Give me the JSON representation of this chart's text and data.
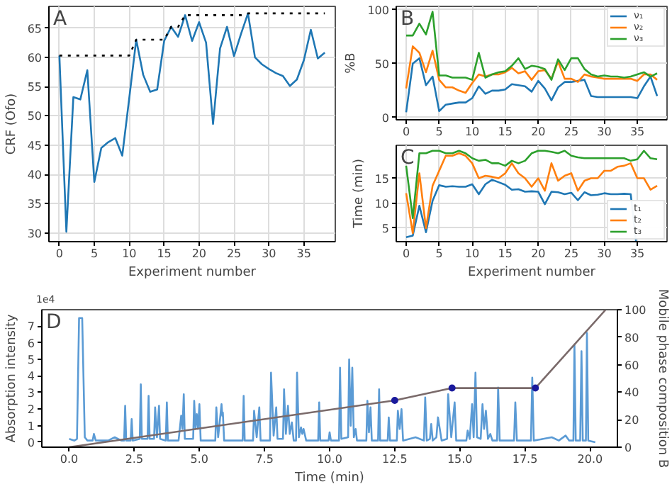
{
  "chart_data": [
    {
      "type": "line",
      "title": "A",
      "xlabel": "Experiment number",
      "ylabel": "CRF (Ofo)",
      "xlim": [
        -1.5,
        39.5
      ],
      "ylim": [
        28.5,
        68.7
      ],
      "xticks": [
        0,
        5,
        10,
        15,
        20,
        25,
        30,
        35
      ],
      "yticks": [
        30,
        35,
        40,
        45,
        50,
        55,
        60,
        65
      ],
      "grid": true,
      "legend": false,
      "x": [
        0,
        1,
        2,
        3,
        4,
        5,
        6,
        7,
        8,
        9,
        10,
        11,
        12,
        13,
        14,
        15,
        16,
        17,
        18,
        19,
        20,
        21,
        22,
        23,
        24,
        25,
        26,
        27,
        28,
        29,
        30,
        31,
        32,
        33,
        34,
        35,
        36,
        37,
        38
      ],
      "series": [
        {
          "color": "#1f77b4",
          "line_style": "solid",
          "values": [
            60.3,
            30.2,
            53.2,
            52.8,
            57.8,
            38.7,
            44.5,
            45.5,
            46.2,
            43.2,
            53,
            63,
            57,
            54.1,
            54.5,
            62.8,
            65.2,
            63.5,
            67.2,
            62.8,
            66,
            62.5,
            48.6,
            61.5,
            65.2,
            60.2,
            64,
            67.5,
            60,
            58.8,
            58,
            57.3,
            56.8,
            55.1,
            56.2,
            59.5,
            64.7,
            59.8,
            60.8
          ]
        },
        {
          "color": "#000000",
          "line_style": "dotted",
          "values": [
            60.3,
            60.3,
            60.3,
            60.3,
            60.3,
            60.3,
            60.3,
            60.3,
            60.3,
            60.3,
            60.3,
            63,
            63,
            63,
            63,
            63,
            65.2,
            65.2,
            67.2,
            67.2,
            67.2,
            67.2,
            67.2,
            67.2,
            67.2,
            67.2,
            67.2,
            67.5,
            67.5,
            67.5,
            67.5,
            67.5,
            67.5,
            67.5,
            67.5,
            67.5,
            67.5,
            67.5,
            67.5
          ]
        }
      ]
    },
    {
      "type": "line",
      "title": "B",
      "ylabel": "%B",
      "xlim": [
        -1.5,
        39.5
      ],
      "ylim": [
        -2,
        103
      ],
      "xticks": [
        0,
        5,
        10,
        15,
        20,
        25,
        30,
        35
      ],
      "yticks": [
        0,
        50,
        100
      ],
      "grid": true,
      "legend": "top right",
      "x": [
        0,
        1,
        2,
        3,
        4,
        5,
        6,
        7,
        8,
        9,
        10,
        11,
        12,
        13,
        14,
        15,
        16,
        17,
        18,
        19,
        20,
        21,
        22,
        23,
        24,
        25,
        26,
        27,
        28,
        29,
        30,
        31,
        32,
        33,
        34,
        35,
        36,
        37,
        38
      ],
      "series": [
        {
          "name": "ν₁",
          "color": "#1f77b4",
          "values": [
            5,
            50,
            55,
            30,
            38,
            6,
            12,
            13,
            14,
            14,
            18,
            29,
            22,
            25,
            25,
            26,
            31,
            30,
            29,
            24,
            34,
            27,
            16,
            28,
            33,
            33,
            34,
            35,
            20,
            19,
            19,
            19,
            19,
            19,
            19,
            18,
            29,
            38,
            20
          ]
        },
        {
          "name": "ν₂",
          "color": "#ff7f0e",
          "values": [
            27,
            66,
            60,
            42,
            62,
            35,
            28,
            28,
            25,
            23,
            32,
            40,
            38,
            40,
            40,
            42,
            46,
            41,
            43,
            35,
            43,
            44,
            36,
            52,
            36,
            36,
            33,
            40,
            38,
            37,
            36,
            36,
            36,
            36,
            36,
            34,
            40,
            40,
            35
          ]
        },
        {
          "name": "ν₃",
          "color": "#2ca02c",
          "values": [
            76,
            76,
            87,
            77,
            98,
            39,
            39,
            37,
            37,
            37,
            35,
            60,
            37,
            40,
            42,
            43,
            48,
            55,
            45,
            48,
            47,
            45,
            35,
            54,
            44,
            55,
            55,
            45,
            40,
            38,
            39,
            38,
            38,
            37,
            38,
            40,
            42,
            38,
            41
          ]
        }
      ]
    },
    {
      "type": "line",
      "title": "C",
      "xlabel": "Experiment number",
      "ylabel": "Time (min)",
      "xlim": [
        -1.5,
        39.5
      ],
      "ylim": [
        2.3,
        21.6
      ],
      "xticks": [
        0,
        5,
        10,
        15,
        20,
        25,
        30,
        35
      ],
      "yticks": [
        5,
        10,
        15
      ],
      "grid": true,
      "legend": "bottom right",
      "x": [
        0,
        1,
        2,
        3,
        4,
        5,
        6,
        7,
        8,
        9,
        10,
        11,
        12,
        13,
        14,
        15,
        16,
        17,
        18,
        19,
        20,
        21,
        22,
        23,
        24,
        25,
        26,
        27,
        28,
        29,
        30,
        31,
        32,
        33,
        34,
        35,
        36,
        37,
        38
      ],
      "series": [
        {
          "name": "t₁",
          "color": "#1f77b4",
          "values": [
            3.2,
            3.5,
            9.5,
            4.2,
            10.5,
            13.6,
            13.3,
            13.4,
            13.3,
            13.3,
            13.8,
            11.8,
            13.8,
            14.7,
            14.2,
            13.7,
            12.7,
            12.8,
            12.3,
            12.4,
            12.3,
            9.8,
            12.3,
            12.2,
            11.8,
            12.1,
            10.6,
            12.2,
            11.6,
            11.7,
            12,
            11.8,
            11.8,
            11.9,
            11.8,
            null,
            null,
            null,
            null
          ]
        },
        {
          "name": "t₂",
          "color": "#ff7f0e",
          "values": [
            12,
            4,
            16,
            5,
            13.5,
            16.5,
            19.5,
            19.5,
            20,
            19.5,
            18,
            15,
            15.5,
            15.3,
            15,
            16,
            18,
            16,
            15,
            13.3,
            15,
            12.5,
            18,
            14.5,
            15.5,
            16,
            12.5,
            14.5,
            15,
            15,
            16.5,
            16.5,
            17.3,
            17.5,
            18,
            15,
            15,
            12.7,
            13.5
          ]
        },
        {
          "name": "t₃",
          "color": "#2ca02c",
          "values": [
            17.5,
            7,
            20,
            20,
            20.5,
            20.5,
            20,
            20,
            20.5,
            20,
            19,
            18.5,
            18.7,
            18,
            18,
            17.5,
            18.5,
            18,
            18.5,
            20,
            20.5,
            20.5,
            20.3,
            20,
            20.5,
            19.5,
            19.2,
            19,
            19,
            19,
            19,
            19,
            19,
            19,
            18.5,
            18.8,
            20.5,
            19,
            18.8
          ]
        }
      ]
    },
    {
      "type": "line",
      "title": "D",
      "xlabel": "Time (min)",
      "ylabel": "Absorption intensity",
      "y2label": "Mobile phase composition B",
      "annotations": [
        "1e4"
      ],
      "xlim": [
        -1.05,
        21.05
      ],
      "ylim": [
        -0.3,
        8.0
      ],
      "y2lim": [
        0,
        100
      ],
      "xticks": [
        {
          "value": 0,
          "label": "0.0"
        },
        2.5,
        {
          "value": 5,
          "label": "5.0"
        },
        7.5,
        {
          "value": 10,
          "label": "10.0"
        },
        12.5,
        {
          "value": 15,
          "label": "15.0"
        },
        17.5,
        {
          "value": 20,
          "label": "20.0"
        }
      ],
      "yticks": [
        0,
        1,
        2,
        3,
        4,
        5,
        6,
        7
      ],
      "y2ticks": [
        0,
        20,
        40,
        60,
        80,
        100
      ],
      "grid": false,
      "legend": false,
      "series": [
        {
          "color": "#5b9bd5",
          "x": [
            0.0,
            0.2,
            0.3,
            0.38,
            0.5,
            0.6,
            0.7,
            0.9,
            0.95,
            1.02,
            1.5,
            1.75,
            2.0,
            2.11,
            2.15,
            2.19,
            2.36,
            2.4,
            2.44,
            2.71,
            2.75,
            2.79,
            3.01,
            3.05,
            3.09,
            3.26,
            3.3,
            3.37,
            3.45,
            3.49,
            3.71,
            3.75,
            3.79,
            4.2,
            4.3,
            4.35,
            4.4,
            4.44,
            4.76,
            4.8,
            4.85,
            4.9,
            4.95,
            5.0,
            5.05,
            5.61,
            5.65,
            5.72,
            5.85,
            5.88,
            5.9,
            5.95,
            6.66,
            6.7,
            6.74,
            7.06,
            7.1,
            7.2,
            7.3,
            7.35,
            7.71,
            7.75,
            7.85,
            7.95,
            8.0,
            8.21,
            8.25,
            8.32,
            8.4,
            8.47,
            8.55,
            8.62,
            8.71,
            8.75,
            8.82,
            8.9,
            8.95,
            9.0,
            9.1,
            9.56,
            9.6,
            9.64,
            9.96,
            10.0,
            10.05,
            10.36,
            10.4,
            10.45,
            10.71,
            10.75,
            10.81,
            10.87,
            10.93,
            11.0,
            11.05,
            11.41,
            11.45,
            11.51,
            11.57,
            11.62,
            11.86,
            11.9,
            11.94,
            12.23,
            12.27,
            12.32,
            12.58,
            12.62,
            12.69,
            12.76,
            12.82,
            13.3,
            13.62,
            13.67,
            13.73,
            13.85,
            13.9,
            13.96,
            14.1,
            14.16,
            14.3,
            14.51,
            14.55,
            14.67,
            14.8,
            14.86,
            15.25,
            15.3,
            15.38,
            15.47,
            15.53,
            15.6,
            15.66,
            15.8,
            15.87,
            15.93,
            16.0,
            16.08,
            16.17,
            16.25,
            16.43,
            16.47,
            16.53,
            17.08,
            17.13,
            17.19,
            17.73,
            17.78,
            17.84,
            18.2,
            18.53,
            18.8,
            19.06,
            19.2,
            19.36,
            19.4,
            19.45,
            19.62,
            19.67,
            19.72,
            19.84,
            19.88,
            19.93,
            20.2
          ],
          "values": [
            0.2,
            0.1,
            0.2,
            7.5,
            7.5,
            0.3,
            0.1,
            0.1,
            0.5,
            0.1,
            0.1,
            0.3,
            0.1,
            0.1,
            2.2,
            0.1,
            0.1,
            1.4,
            0.1,
            0.2,
            3.5,
            0.2,
            0.2,
            2.8,
            0.2,
            0.2,
            2.1,
            0.3,
            2.2,
            0.2,
            0.1,
            2.4,
            0.1,
            0.1,
            1.6,
            0.8,
            2.9,
            0.2,
            0.2,
            2.5,
            0.8,
            1.7,
            0.8,
            2.3,
            0.1,
            0.1,
            2.1,
            0.3,
            2.3,
            1.6,
            1.8,
            0.1,
            0.1,
            2.8,
            0.1,
            0.1,
            1.9,
            0.3,
            2.1,
            0.1,
            0.1,
            4.2,
            0.4,
            2.1,
            0.2,
            0.2,
            3.2,
            0.5,
            2.2,
            0.5,
            1.2,
            0.1,
            0.1,
            4.2,
            0.3,
            0.9,
            0.5,
            0.8,
            0.1,
            0.1,
            2.4,
            0.1,
            0.1,
            0.6,
            0.1,
            0.1,
            4.5,
            0.2,
            0.3,
            5.0,
            1.0,
            4.5,
            0.3,
            0.8,
            0.1,
            0.1,
            2.5,
            0.6,
            2.1,
            0.1,
            0.1,
            3.2,
            0.1,
            0.1,
            1.5,
            0.1,
            0.1,
            1.9,
            0.8,
            2.0,
            0.1,
            0.3,
            0.1,
            2.7,
            0.1,
            0.2,
            1.1,
            0.1,
            0.3,
            1.5,
            0.1,
            0.2,
            2.9,
            0.3,
            2.4,
            0.1,
            0.1,
            0.7,
            0.2,
            2.3,
            0.3,
            4.2,
            0.3,
            0.2,
            2.3,
            0.8,
            1.9,
            0.2,
            0.5,
            0.1,
            0.1,
            3.3,
            0.1,
            0.1,
            2.4,
            0.1,
            0.1,
            3.9,
            0.1,
            0.2,
            0.3,
            0.1,
            0.4,
            0.1,
            0.1,
            5.9,
            0.1,
            0.1,
            5.5,
            0.1,
            0.1,
            6.6,
            0.1,
            0.0
          ]
        },
        {
          "color": "#7a6a6a",
          "axis": "y2",
          "x": [
            0,
            12.5,
            14.7,
            17.9,
            20.6
          ],
          "values": [
            0,
            34,
            43,
            43,
            100
          ]
        },
        {
          "type": "scatter",
          "marker": "circle",
          "color": "#1a1a9c",
          "axis": "y2",
          "x": [
            12.5,
            14.7,
            17.9
          ],
          "values": [
            34,
            43,
            43
          ]
        }
      ]
    }
  ]
}
